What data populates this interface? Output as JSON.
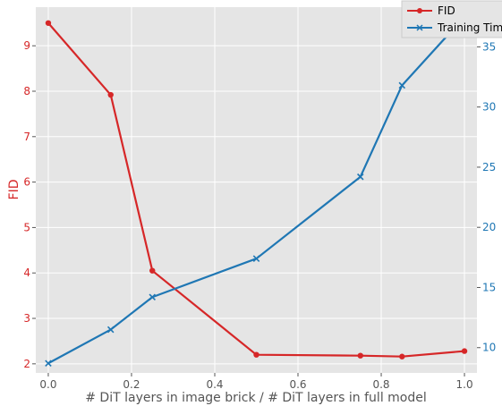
{
  "chart_data": {
    "type": "line",
    "xlabel": "# DiT layers in image brick / # DiT layers in full model",
    "ylabel_left": "FID",
    "ylabel_right": "",
    "x_ticks": [
      "0.0",
      "0.2",
      "0.4",
      "0.6",
      "0.8",
      "1.0"
    ],
    "y_left_ticks": [
      "2",
      "3",
      "4",
      "5",
      "6",
      "7",
      "8",
      "9"
    ],
    "y_right_ticks": [
      "10",
      "15",
      "20",
      "25",
      "30",
      "35"
    ],
    "xlim": [
      -0.03,
      1.03
    ],
    "ylim_left": [
      1.8,
      9.85
    ],
    "ylim_right": [
      7.9,
      38.3
    ],
    "grid": true,
    "legend_position": "top-right",
    "series": [
      {
        "name": "FID",
        "axis": "left",
        "color": "#d62728",
        "marker": "circle",
        "x": [
          0.0,
          0.15,
          0.25,
          0.5,
          0.75,
          0.85,
          1.0
        ],
        "y": [
          9.5,
          7.92,
          4.05,
          2.2,
          2.18,
          2.16,
          2.28
        ]
      },
      {
        "name": "Training Tim",
        "axis": "right",
        "color": "#1f77b4",
        "marker": "x",
        "x": [
          0.0,
          0.15,
          0.25,
          0.5,
          0.75,
          0.85,
          1.0
        ],
        "y": [
          8.7,
          11.5,
          14.2,
          17.4,
          24.2,
          31.8,
          37.5
        ]
      }
    ]
  }
}
